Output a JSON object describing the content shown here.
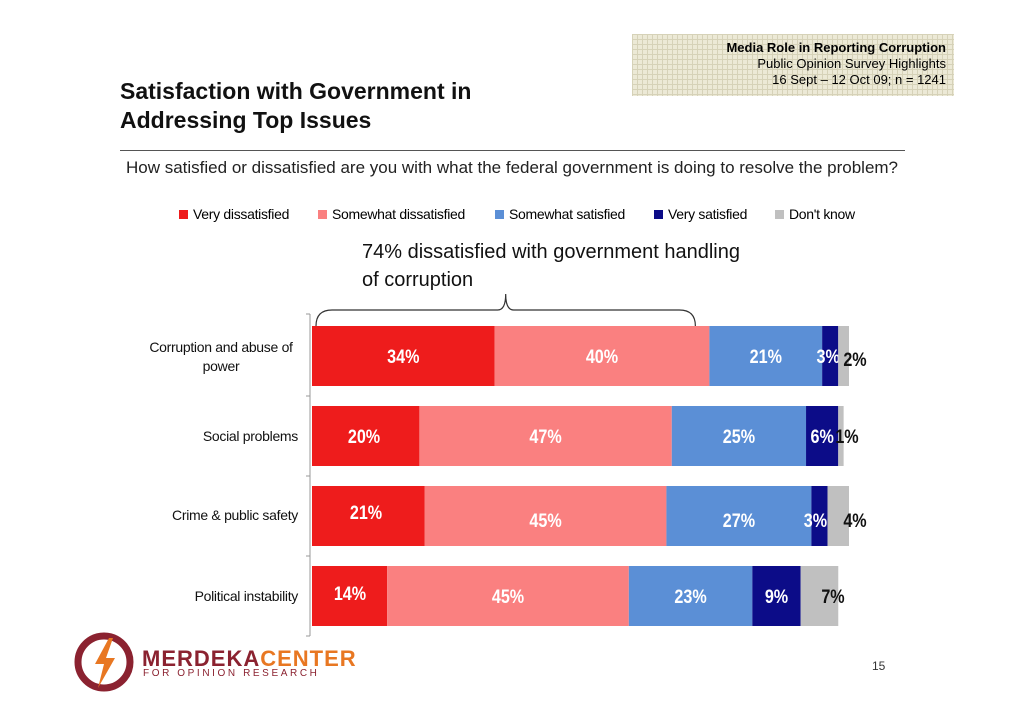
{
  "header": {
    "badge_line1": "Media Role in Reporting Corruption",
    "badge_line2": "Public Opinion Survey Highlights",
    "badge_line3": "16 Sept – 12 Oct 09; n = 1241",
    "title": "Satisfaction with Government in Addressing Top Issues",
    "question": "How satisfied or dissatisfied are you with what the federal government is doing to resolve the problem?"
  },
  "annotation": "74% dissatisfied with government handling of corruption",
  "page_number": "15",
  "logo": {
    "name_part1": "MERDEKA",
    "name_part2": "CENTER",
    "tagline": "FOR OPINION RESEARCH",
    "color_main": "#8b2230",
    "color_accent": "#e87722"
  },
  "chart_data": {
    "type": "bar",
    "orientation": "horizontal",
    "stacked": true,
    "categories": [
      "Corruption and abuse of power",
      "Social problems",
      "Crime & public safety",
      "Political instability"
    ],
    "series": [
      {
        "name": "Very dissatisfied",
        "color": "#ee1c1c",
        "values": [
          34,
          20,
          21,
          14
        ],
        "labels": [
          "34%",
          "20%",
          "21%",
          "14%"
        ]
      },
      {
        "name": "Somewhat dissatisfied",
        "color": "#fa8080",
        "values": [
          40,
          47,
          45,
          45
        ],
        "labels": [
          "40%",
          "47%",
          "45%",
          "45%"
        ]
      },
      {
        "name": "Somewhat satisfied",
        "color": "#5b8fd6",
        "values": [
          21,
          25,
          27,
          23
        ],
        "labels": [
          "21%",
          "25%",
          "27%",
          "23%"
        ]
      },
      {
        "name": "Very satisfied",
        "color": "#0c0c88",
        "values": [
          3,
          6,
          3,
          9
        ],
        "labels": [
          "3%",
          "6%",
          "3%",
          "9%"
        ]
      },
      {
        "name": "Don't know",
        "color": "#c0c0c0",
        "values": [
          2,
          1,
          4,
          7
        ],
        "labels": [
          "2%",
          "1%",
          "4%",
          "7%"
        ]
      }
    ],
    "title": "",
    "xlabel": "",
    "ylabel": "",
    "xlim": [
      0,
      100
    ],
    "legend_position": "top"
  }
}
